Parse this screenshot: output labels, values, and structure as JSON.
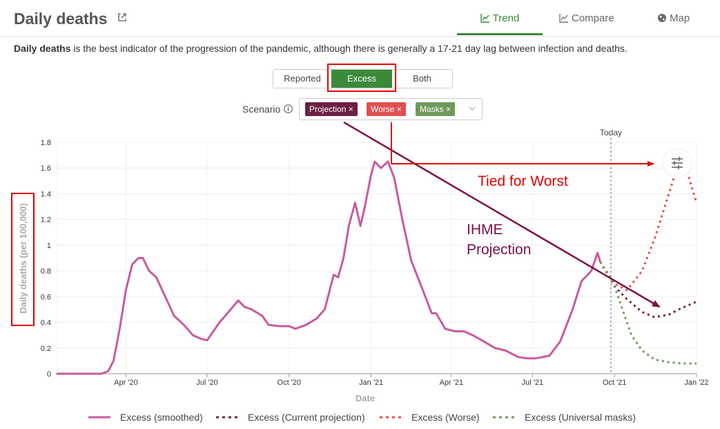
{
  "header": {
    "title": "Daily deaths",
    "tabs": [
      {
        "label": "Trend",
        "active": true
      },
      {
        "label": "Compare",
        "active": false
      },
      {
        "label": "Map",
        "active": false
      }
    ]
  },
  "description": {
    "bold": "Daily deaths",
    "rest": " is the best indicator of the progression of the pandemic, although there is generally a 17-21 day lag between infection and deaths."
  },
  "toggle": {
    "options": [
      "Reported",
      "Excess",
      "Both"
    ],
    "selected": "Excess"
  },
  "scenario": {
    "label": "Scenario",
    "chips": [
      {
        "label": "Projection",
        "color": "#6d1f45"
      },
      {
        "label": "Worse",
        "color": "#e05050"
      },
      {
        "label": "Masks",
        "color": "#6e9a5c"
      }
    ]
  },
  "annotations": {
    "today": "Today",
    "tied": "Tied for Worst",
    "ihme_line1": "IHME",
    "ihme_line2": "Projection"
  },
  "colors": {
    "accent": "#3a8a3a",
    "smoothed": "#c95a9c",
    "projection": "#6d1f45",
    "worse": "#e05050",
    "masks": "#6e9a5c",
    "annotation_red": "#e00000",
    "annotation_arrow": "#7a1048"
  },
  "chart_data": {
    "type": "line",
    "xlabel": "Date",
    "ylabel": "Daily deaths (per 100,000)",
    "ylim": [
      0,
      1.8
    ],
    "yticks": [
      "0",
      "0.2",
      "0.4",
      "0.6",
      "0.8",
      "1",
      "1.2",
      "1.4",
      "1.6",
      "1.8"
    ],
    "xlim": [
      "2020-01-15",
      "2022-01-01"
    ],
    "xticks": [
      {
        "date": "2020-04-01",
        "label": "Apr '20"
      },
      {
        "date": "2020-07-01",
        "label": "Jul '20"
      },
      {
        "date": "2020-10-01",
        "label": "Oct '20"
      },
      {
        "date": "2021-01-01",
        "label": "Jan '21"
      },
      {
        "date": "2021-04-01",
        "label": "Apr '21"
      },
      {
        "date": "2021-07-01",
        "label": "Jul '21"
      },
      {
        "date": "2021-10-01",
        "label": "Oct '21"
      },
      {
        "date": "2022-01-01",
        "label": "Jan '22"
      }
    ],
    "today": "2021-10-01",
    "grid": true,
    "legend_position": "bottom",
    "series": [
      {
        "name": "Excess (smoothed)",
        "style": "solid",
        "points": [
          [
            "2020-01-15",
            0
          ],
          [
            "2020-03-05",
            0
          ],
          [
            "2020-03-12",
            0.02
          ],
          [
            "2020-03-18",
            0.1
          ],
          [
            "2020-03-25",
            0.35
          ],
          [
            "2020-04-01",
            0.65
          ],
          [
            "2020-04-08",
            0.85
          ],
          [
            "2020-04-15",
            0.9
          ],
          [
            "2020-04-20",
            0.9
          ],
          [
            "2020-04-27",
            0.8
          ],
          [
            "2020-05-05",
            0.75
          ],
          [
            "2020-05-15",
            0.6
          ],
          [
            "2020-05-25",
            0.45
          ],
          [
            "2020-06-05",
            0.38
          ],
          [
            "2020-06-15",
            0.3
          ],
          [
            "2020-06-25",
            0.27
          ],
          [
            "2020-07-01",
            0.26
          ],
          [
            "2020-07-08",
            0.33
          ],
          [
            "2020-07-15",
            0.4
          ],
          [
            "2020-07-25",
            0.48
          ],
          [
            "2020-08-05",
            0.57
          ],
          [
            "2020-08-12",
            0.52
          ],
          [
            "2020-08-20",
            0.5
          ],
          [
            "2020-09-01",
            0.45
          ],
          [
            "2020-09-08",
            0.38
          ],
          [
            "2020-09-20",
            0.37
          ],
          [
            "2020-10-01",
            0.37
          ],
          [
            "2020-10-08",
            0.35
          ],
          [
            "2020-10-20",
            0.38
          ],
          [
            "2020-11-01",
            0.43
          ],
          [
            "2020-11-10",
            0.5
          ],
          [
            "2020-11-20",
            0.77
          ],
          [
            "2020-11-25",
            0.75
          ],
          [
            "2020-12-01",
            0.9
          ],
          [
            "2020-12-07",
            1.15
          ],
          [
            "2020-12-14",
            1.33
          ],
          [
            "2020-12-20",
            1.15
          ],
          [
            "2020-12-25",
            1.3
          ],
          [
            "2021-01-01",
            1.55
          ],
          [
            "2021-01-05",
            1.65
          ],
          [
            "2021-01-12",
            1.6
          ],
          [
            "2021-01-20",
            1.65
          ],
          [
            "2021-01-27",
            1.52
          ],
          [
            "2021-02-05",
            1.2
          ],
          [
            "2021-02-15",
            0.88
          ],
          [
            "2021-02-28",
            0.65
          ],
          [
            "2021-03-10",
            0.47
          ],
          [
            "2021-03-15",
            0.47
          ],
          [
            "2021-03-25",
            0.35
          ],
          [
            "2021-04-05",
            0.33
          ],
          [
            "2021-04-15",
            0.33
          ],
          [
            "2021-04-25",
            0.3
          ],
          [
            "2021-05-05",
            0.26
          ],
          [
            "2021-05-20",
            0.2
          ],
          [
            "2021-06-01",
            0.18
          ],
          [
            "2021-06-15",
            0.13
          ],
          [
            "2021-06-25",
            0.12
          ],
          [
            "2021-07-05",
            0.12
          ],
          [
            "2021-07-20",
            0.14
          ],
          [
            "2021-08-01",
            0.25
          ],
          [
            "2021-08-15",
            0.5
          ],
          [
            "2021-08-25",
            0.72
          ],
          [
            "2021-09-05",
            0.8
          ],
          [
            "2021-09-12",
            0.94
          ],
          [
            "2021-09-15",
            0.87
          ]
        ]
      },
      {
        "name": "Excess (Current projection)",
        "style": "dotted",
        "points": [
          [
            "2021-09-15",
            0.87
          ],
          [
            "2021-10-01",
            0.68
          ],
          [
            "2021-10-15",
            0.58
          ],
          [
            "2021-11-01",
            0.48
          ],
          [
            "2021-11-15",
            0.44
          ],
          [
            "2021-12-01",
            0.46
          ],
          [
            "2021-12-15",
            0.51
          ],
          [
            "2022-01-01",
            0.56
          ]
        ]
      },
      {
        "name": "Excess (Worse)",
        "style": "dotted",
        "points": [
          [
            "2021-09-15",
            0.87
          ],
          [
            "2021-10-01",
            0.7
          ],
          [
            "2021-10-15",
            0.65
          ],
          [
            "2021-11-01",
            0.8
          ],
          [
            "2021-11-15",
            1.05
          ],
          [
            "2021-12-01",
            1.4
          ],
          [
            "2021-12-10",
            1.6
          ],
          [
            "2021-12-18",
            1.65
          ],
          [
            "2022-01-01",
            1.33
          ]
        ]
      },
      {
        "name": "Excess (Universal masks)",
        "style": "dotted",
        "points": [
          [
            "2021-09-15",
            0.87
          ],
          [
            "2021-10-01",
            0.68
          ],
          [
            "2021-10-10",
            0.5
          ],
          [
            "2021-10-20",
            0.3
          ],
          [
            "2021-11-01",
            0.18
          ],
          [
            "2021-11-15",
            0.11
          ],
          [
            "2021-12-01",
            0.09
          ],
          [
            "2021-12-15",
            0.08
          ],
          [
            "2022-01-01",
            0.08
          ]
        ]
      }
    ]
  }
}
